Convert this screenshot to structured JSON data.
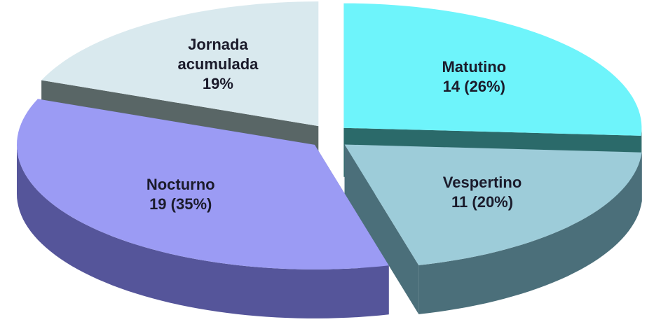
{
  "chart_data": {
    "type": "pie",
    "categories": [
      "Matutino",
      "Vespertino",
      "Nocturno",
      "Jornada acumulada"
    ],
    "values": [
      26,
      20,
      35,
      19
    ],
    "value_labels": [
      "14 (26%)",
      "11 (20%)",
      "19 (35%)",
      "19%"
    ],
    "colors": [
      "#6ef4fb",
      "#9dccd9",
      "#9b9bf4",
      "#d9e9ee"
    ],
    "side_colors": [
      "#2b6a6a",
      "#4b6f7a",
      "#55559a",
      "#596666"
    ]
  }
}
